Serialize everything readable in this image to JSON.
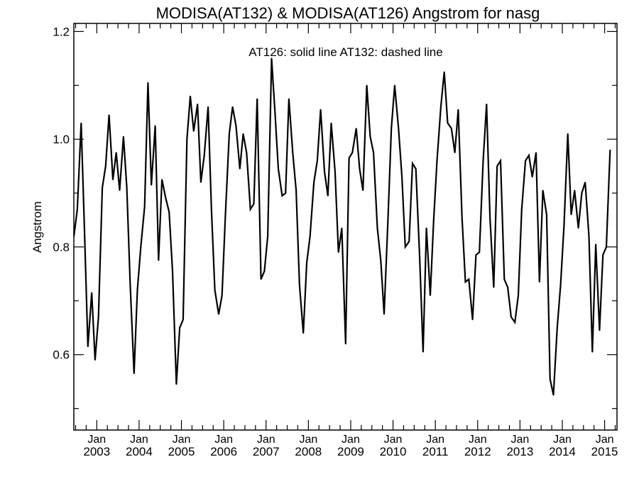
{
  "chart_data": {
    "type": "line",
    "title": "MODISA(AT132) & MODISA(AT126)  Angstrom for nasg",
    "annotation": "AT126: solid line   AT132: dashed line",
    "ylabel": "Angstrom",
    "xlabel": "",
    "ylim": [
      0.46,
      1.215
    ],
    "yticks": [
      0.6,
      0.8,
      1.0,
      1.2
    ],
    "y_tick_labels": [
      "0.6",
      "0.8",
      "1.0",
      "1.2"
    ],
    "xlim": [
      2002.458,
      2015.292
    ],
    "xticks": [
      {
        "x": 2003.0,
        "month": "Jan",
        "year": "2003"
      },
      {
        "x": 2004.0,
        "month": "Jan",
        "year": "2004"
      },
      {
        "x": 2005.0,
        "month": "Jan",
        "year": "2005"
      },
      {
        "x": 2006.0,
        "month": "Jan",
        "year": "2006"
      },
      {
        "x": 2007.0,
        "month": "Jan",
        "year": "2007"
      },
      {
        "x": 2008.0,
        "month": "Jan",
        "year": "2008"
      },
      {
        "x": 2009.0,
        "month": "Jan",
        "year": "2009"
      },
      {
        "x": 2010.0,
        "month": "Jan",
        "year": "2010"
      },
      {
        "x": 2011.0,
        "month": "Jan",
        "year": "2011"
      },
      {
        "x": 2012.0,
        "month": "Jan",
        "year": "2012"
      },
      {
        "x": 2013.0,
        "month": "Jan",
        "year": "2013"
      },
      {
        "x": 2014.0,
        "month": "Jan",
        "year": "2014"
      },
      {
        "x": 2015.0,
        "month": "Jan",
        "year": "2015"
      }
    ],
    "grid": false,
    "series": [
      {
        "name": "AT126",
        "style": "solid",
        "color": "#000000",
        "points": [
          [
            2002.46,
            0.82
          ],
          [
            2002.54,
            0.87
          ],
          [
            2002.63,
            1.03
          ],
          [
            2002.71,
            0.83
          ],
          [
            2002.79,
            0.615
          ],
          [
            2002.88,
            0.715
          ],
          [
            2002.96,
            0.59
          ],
          [
            2003.04,
            0.67
          ],
          [
            2003.13,
            0.91
          ],
          [
            2003.21,
            0.95
          ],
          [
            2003.29,
            1.045
          ],
          [
            2003.38,
            0.925
          ],
          [
            2003.46,
            0.975
          ],
          [
            2003.54,
            0.905
          ],
          [
            2003.63,
            1.005
          ],
          [
            2003.71,
            0.91
          ],
          [
            2003.79,
            0.73
          ],
          [
            2003.88,
            0.565
          ],
          [
            2003.96,
            0.72
          ],
          [
            2004.04,
            0.8
          ],
          [
            2004.13,
            0.875
          ],
          [
            2004.21,
            1.105
          ],
          [
            2004.29,
            0.915
          ],
          [
            2004.38,
            1.025
          ],
          [
            2004.46,
            0.775
          ],
          [
            2004.54,
            0.925
          ],
          [
            2004.63,
            0.89
          ],
          [
            2004.71,
            0.865
          ],
          [
            2004.79,
            0.755
          ],
          [
            2004.88,
            0.545
          ],
          [
            2004.96,
            0.65
          ],
          [
            2005.04,
            0.665
          ],
          [
            2005.13,
            1.0
          ],
          [
            2005.21,
            1.08
          ],
          [
            2005.29,
            1.015
          ],
          [
            2005.38,
            1.065
          ],
          [
            2005.46,
            0.92
          ],
          [
            2005.54,
            0.97
          ],
          [
            2005.63,
            1.06
          ],
          [
            2005.71,
            0.87
          ],
          [
            2005.79,
            0.72
          ],
          [
            2005.88,
            0.675
          ],
          [
            2005.96,
            0.71
          ],
          [
            2006.04,
            0.86
          ],
          [
            2006.13,
            1.01
          ],
          [
            2006.21,
            1.06
          ],
          [
            2006.29,
            1.025
          ],
          [
            2006.38,
            0.945
          ],
          [
            2006.46,
            1.01
          ],
          [
            2006.54,
            0.975
          ],
          [
            2006.63,
            0.87
          ],
          [
            2006.71,
            0.88
          ],
          [
            2006.79,
            1.075
          ],
          [
            2006.88,
            0.74
          ],
          [
            2006.96,
            0.755
          ],
          [
            2007.04,
            0.82
          ],
          [
            2007.13,
            1.15
          ],
          [
            2007.21,
            1.05
          ],
          [
            2007.29,
            0.945
          ],
          [
            2007.38,
            0.895
          ],
          [
            2007.46,
            0.9
          ],
          [
            2007.54,
            1.075
          ],
          [
            2007.63,
            0.975
          ],
          [
            2007.71,
            0.905
          ],
          [
            2007.79,
            0.73
          ],
          [
            2007.88,
            0.64
          ],
          [
            2007.96,
            0.77
          ],
          [
            2008.04,
            0.82
          ],
          [
            2008.13,
            0.92
          ],
          [
            2008.21,
            0.96
          ],
          [
            2008.29,
            1.055
          ],
          [
            2008.38,
            0.94
          ],
          [
            2008.46,
            0.895
          ],
          [
            2008.54,
            1.03
          ],
          [
            2008.63,
            0.94
          ],
          [
            2008.71,
            0.79
          ],
          [
            2008.79,
            0.835
          ],
          [
            2008.88,
            0.62
          ],
          [
            2008.96,
            0.965
          ],
          [
            2009.04,
            0.975
          ],
          [
            2009.13,
            1.02
          ],
          [
            2009.21,
            0.945
          ],
          [
            2009.29,
            0.905
          ],
          [
            2009.38,
            1.1
          ],
          [
            2009.46,
            1.005
          ],
          [
            2009.54,
            0.975
          ],
          [
            2009.63,
            0.835
          ],
          [
            2009.71,
            0.775
          ],
          [
            2009.79,
            0.675
          ],
          [
            2009.88,
            0.85
          ],
          [
            2009.96,
            1.02
          ],
          [
            2010.04,
            1.1
          ],
          [
            2010.13,
            1.02
          ],
          [
            2010.21,
            0.93
          ],
          [
            2010.29,
            0.8
          ],
          [
            2010.38,
            0.81
          ],
          [
            2010.46,
            0.955
          ],
          [
            2010.54,
            0.945
          ],
          [
            2010.63,
            0.78
          ],
          [
            2010.71,
            0.605
          ],
          [
            2010.79,
            0.835
          ],
          [
            2010.88,
            0.71
          ],
          [
            2010.96,
            0.85
          ],
          [
            2011.04,
            0.96
          ],
          [
            2011.13,
            1.06
          ],
          [
            2011.21,
            1.125
          ],
          [
            2011.29,
            1.03
          ],
          [
            2011.38,
            1.02
          ],
          [
            2011.46,
            0.975
          ],
          [
            2011.54,
            1.055
          ],
          [
            2011.63,
            0.855
          ],
          [
            2011.71,
            0.735
          ],
          [
            2011.79,
            0.74
          ],
          [
            2011.88,
            0.665
          ],
          [
            2011.96,
            0.785
          ],
          [
            2012.04,
            0.79
          ],
          [
            2012.13,
            0.96
          ],
          [
            2012.21,
            1.065
          ],
          [
            2012.29,
            0.855
          ],
          [
            2012.38,
            0.725
          ],
          [
            2012.46,
            0.95
          ],
          [
            2012.54,
            0.96
          ],
          [
            2012.63,
            0.74
          ],
          [
            2012.71,
            0.725
          ],
          [
            2012.79,
            0.67
          ],
          [
            2012.88,
            0.66
          ],
          [
            2012.96,
            0.71
          ],
          [
            2013.04,
            0.87
          ],
          [
            2013.13,
            0.96
          ],
          [
            2013.21,
            0.97
          ],
          [
            2013.29,
            0.93
          ],
          [
            2013.38,
            0.975
          ],
          [
            2013.46,
            0.735
          ],
          [
            2013.54,
            0.905
          ],
          [
            2013.63,
            0.86
          ],
          [
            2013.71,
            0.555
          ],
          [
            2013.79,
            0.525
          ],
          [
            2013.88,
            0.65
          ],
          [
            2013.96,
            0.73
          ],
          [
            2014.04,
            0.84
          ],
          [
            2014.13,
            1.01
          ],
          [
            2014.21,
            0.86
          ],
          [
            2014.29,
            0.905
          ],
          [
            2014.38,
            0.835
          ],
          [
            2014.46,
            0.9
          ],
          [
            2014.54,
            0.92
          ],
          [
            2014.63,
            0.82
          ],
          [
            2014.71,
            0.605
          ],
          [
            2014.79,
            0.805
          ],
          [
            2014.88,
            0.645
          ],
          [
            2014.96,
            0.785
          ],
          [
            2015.04,
            0.8
          ],
          [
            2015.13,
            0.98
          ]
        ]
      }
    ]
  }
}
